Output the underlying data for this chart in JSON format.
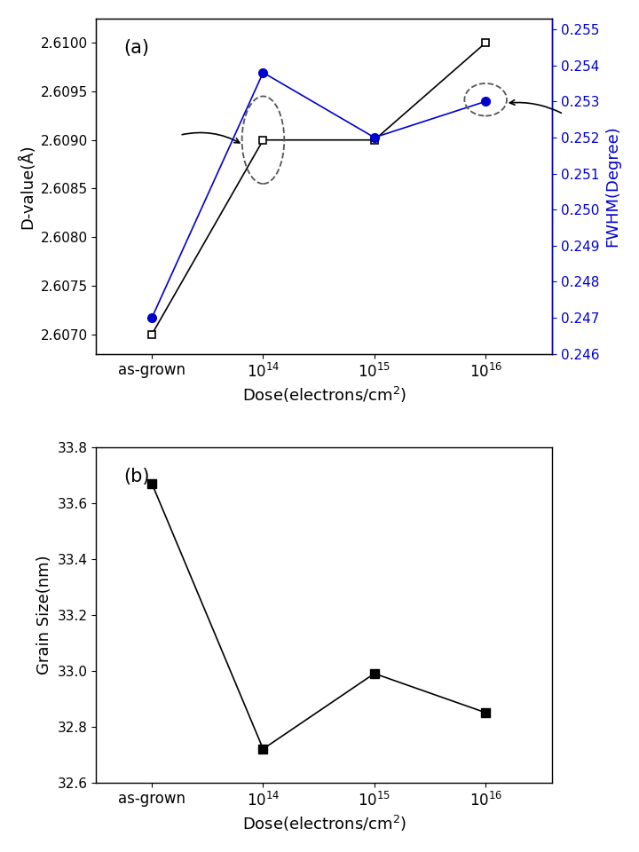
{
  "x_labels": [
    "as-grown",
    "$10^{14}$",
    "$10^{15}$",
    "$10^{16}$"
  ],
  "x_positions": [
    0,
    1,
    2,
    3
  ],
  "xlabel": "Dose(electrons/cm$^2$)",
  "dvalue": [
    2.607,
    2.609,
    2.609,
    2.61
  ],
  "dvalue_ylabel": "D-value(Å)",
  "dvalue_ylim": [
    2.6068,
    2.61025
  ],
  "dvalue_yticks": [
    2.607,
    2.6075,
    2.608,
    2.6085,
    2.609,
    2.6095,
    2.61
  ],
  "fwhm": [
    0.247,
    0.2538,
    0.252,
    0.253
  ],
  "fwhm_ylabel": "FWHM(Degree)",
  "fwhm_ylim": [
    0.246,
    0.2553
  ],
  "fwhm_yticks": [
    0.246,
    0.247,
    0.248,
    0.249,
    0.25,
    0.251,
    0.252,
    0.253,
    0.254,
    0.255
  ],
  "grain_size": [
    33.67,
    32.72,
    32.99,
    32.85
  ],
  "grain_ylabel": "Grain Size(nm)",
  "grain_ylim": [
    32.6,
    33.8
  ],
  "grain_yticks": [
    32.6,
    32.8,
    33.0,
    33.2,
    33.4,
    33.6,
    33.8
  ],
  "black_color": "#000000",
  "blue_color": "#0000cc",
  "label_a": "(a)",
  "label_b": "(b)"
}
